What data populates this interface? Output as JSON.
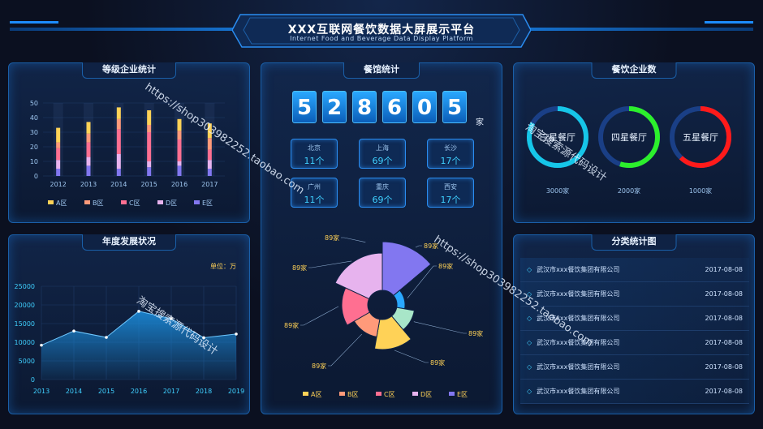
{
  "header": {
    "title": "XXX互联网餐饮数据大屏展示平台",
    "subtitle": "Internet Food and Beverage Data Display Platform"
  },
  "panels": {
    "level": "等级企业统计",
    "year": "年度发展状况",
    "restaurant": "餐馆统计",
    "count": "餐饮企业数",
    "classify": "分类统计图"
  },
  "colors": {
    "A": "#ffd257",
    "B": "#ff9a7a",
    "C": "#ff6f91",
    "D": "#e7b3ee",
    "E": "#8277f0",
    "accent": "#1d8cff",
    "area": "#1b8ad8"
  },
  "level_chart": {
    "type": "bar",
    "categories": [
      "2012",
      "2013",
      "2014",
      "2015",
      "2016",
      "2017"
    ],
    "ylim": [
      0,
      50
    ],
    "yticks": [
      "50",
      "40",
      "30",
      "20",
      "10",
      "0"
    ],
    "series": [
      {
        "name": "A区",
        "values": [
          10,
          8,
          8,
          10,
          8,
          10
        ]
      },
      {
        "name": "B区",
        "values": [
          4,
          6,
          7,
          5,
          6,
          8
        ]
      },
      {
        "name": "C区",
        "values": [
          8,
          10,
          17,
          20,
          15,
          7
        ]
      },
      {
        "name": "D区",
        "values": [
          6,
          6,
          10,
          4,
          3,
          6
        ]
      },
      {
        "name": "E区",
        "values": [
          5,
          7,
          5,
          6,
          7,
          5
        ]
      }
    ],
    "legend": [
      "A区",
      "B区",
      "C区",
      "D区",
      "E区"
    ]
  },
  "year_chart": {
    "type": "area",
    "unit_label": "单位：万",
    "categories": [
      "2013",
      "2014",
      "2015",
      "2016",
      "2017",
      "2018",
      "2019"
    ],
    "values": [
      9200,
      13000,
      11300,
      18300,
      16300,
      11200,
      12200
    ],
    "ylim": [
      0,
      25000
    ],
    "yticks": [
      "25000",
      "20000",
      "15000",
      "10000",
      "5000",
      "0"
    ]
  },
  "counter": {
    "digits": [
      "5",
      "2",
      "8",
      "6",
      "0",
      "5"
    ],
    "unit": "家"
  },
  "cities": [
    {
      "name": "北京",
      "value": "11个"
    },
    {
      "name": "上海",
      "value": "69个"
    },
    {
      "name": "长沙",
      "value": "17个"
    },
    {
      "name": "广州",
      "value": "11个"
    },
    {
      "name": "重庆",
      "value": "69个"
    },
    {
      "name": "西安",
      "value": "17个"
    }
  ],
  "rose_chart": {
    "type": "pie",
    "slice_label": "89家",
    "legend": [
      "A区",
      "B区",
      "C区",
      "D区",
      "E区"
    ]
  },
  "rings": [
    {
      "label": "三星餐厅",
      "value": "3000家",
      "color": "#16c6e8"
    },
    {
      "label": "四星餐厅",
      "value": "2000家",
      "color": "#2cf02c"
    },
    {
      "label": "五星餐厅",
      "value": "1000家",
      "color": "#ff1a1a"
    }
  ],
  "class_list": [
    {
      "name": "武汉市xxx餐饮集团有限公司",
      "date": "2017-08-08"
    },
    {
      "name": "武汉市xxx餐饮集团有限公司",
      "date": "2017-08-08"
    },
    {
      "name": "武汉市xxx餐饮集团有限公司",
      "date": "2017-08-08"
    },
    {
      "name": "武汉市xxx餐饮集团有限公司",
      "date": "2017-08-08"
    },
    {
      "name": "武汉市xxx餐饮集团有限公司",
      "date": "2017-08-08"
    },
    {
      "name": "武汉市xxx餐饮集团有限公司",
      "date": "2017-08-08"
    }
  ],
  "watermarks": {
    "url1": "https://shop303982252.taobao.com",
    "url2": "https://shop303982252.taobao.com",
    "cn1": "淘宝搜索源代码设计",
    "cn2": "淘宝搜索源代码设计"
  }
}
